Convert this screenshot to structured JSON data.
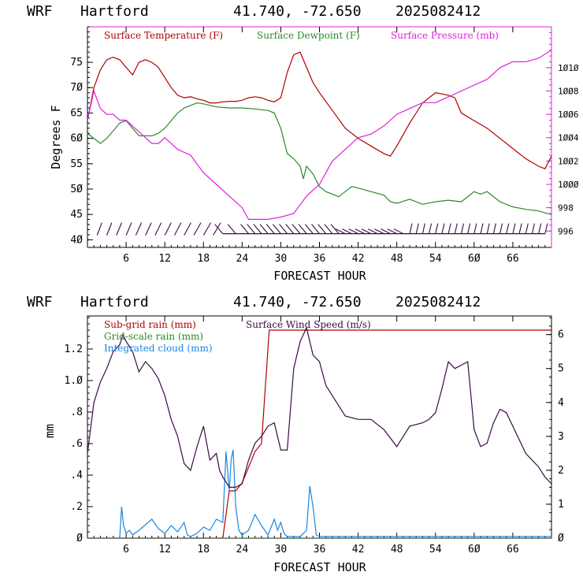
{
  "chart_data": [
    {
      "type": "line",
      "header": {
        "model": "WRF",
        "site": "Hartford",
        "coords": "41.740, -72.650",
        "run": "2025082412"
      },
      "xlabel": "FORECAST HOUR",
      "ylabel": "Degrees F",
      "xlim": [
        0,
        72
      ],
      "xticks": [
        6,
        12,
        18,
        24,
        30,
        36,
        42,
        48,
        54,
        60,
        66
      ],
      "xtick_labels": [
        "6",
        "12",
        "18",
        "24",
        "30",
        "36",
        "42",
        "48",
        "54",
        "6Ø",
        "66"
      ],
      "ylim": [
        38.5,
        82
      ],
      "yticks": [
        40,
        45,
        50,
        55,
        60,
        65,
        70,
        75
      ],
      "ytick_labels": [
        "4Ø",
        "45",
        "5Ø",
        "55",
        "6Ø",
        "65",
        "7Ø",
        "75"
      ],
      "y2lim": [
        994.6,
        1013.5
      ],
      "y2ticks": [
        996,
        998,
        1000,
        1002,
        1004,
        1006,
        1008,
        1010
      ],
      "y2tick_labels": [
        "996",
        "998",
        "1ØØØ",
        "1ØØ2",
        "1ØØ4",
        "1ØØ6",
        "1ØØ8",
        "1Ø1Ø"
      ],
      "legend_placement": "top",
      "series": [
        {
          "name": "Surface Temperature (F)",
          "color": "#b00000",
          "axis": "left",
          "x": [
            0,
            1,
            2,
            3,
            4,
            5,
            6,
            7,
            8,
            9,
            10,
            11,
            12,
            13,
            14,
            15,
            16,
            17,
            18,
            19,
            20,
            21,
            22,
            23,
            24,
            25,
            26,
            27,
            28,
            29,
            30,
            31,
            32,
            33,
            34,
            35,
            36,
            38,
            40,
            42,
            44,
            46,
            47,
            48,
            50,
            52,
            54,
            56,
            57,
            58,
            60,
            62,
            64,
            66,
            68,
            70,
            71,
            72
          ],
          "values": [
            63.5,
            70,
            73.5,
            75.5,
            76,
            75.5,
            74,
            72.5,
            75,
            75.5,
            75,
            74,
            72,
            70,
            68.5,
            68,
            68.2,
            67.8,
            67.5,
            67,
            67,
            67.2,
            67.3,
            67.3,
            67.5,
            68,
            68.2,
            68,
            67.5,
            67.2,
            68,
            73,
            76.5,
            77,
            74,
            71,
            69,
            65.5,
            62,
            60,
            58.5,
            57,
            56.5,
            58.5,
            63,
            67,
            69,
            68.5,
            68,
            65,
            63.5,
            62,
            60,
            58,
            56,
            54.5,
            54,
            56.5
          ]
        },
        {
          "name": "Surface Dewpoint (F)",
          "color": "#2a8a2a",
          "axis": "left",
          "x": [
            0,
            1,
            2,
            3,
            4,
            5,
            6,
            7,
            8,
            9,
            10,
            11,
            12,
            13,
            14,
            15,
            16,
            17,
            18,
            20,
            22,
            24,
            26,
            28,
            29,
            30,
            31,
            32,
            33,
            33.5,
            34,
            35,
            36,
            37,
            38,
            39,
            40,
            41,
            42,
            44,
            46,
            47,
            48,
            50,
            51,
            52,
            54,
            56,
            58,
            59,
            60,
            61,
            62,
            63,
            64,
            66,
            68,
            70,
            71,
            72
          ],
          "values": [
            61,
            60,
            59,
            60,
            61.5,
            63,
            63.5,
            62,
            60.5,
            60.5,
            60.5,
            61,
            62,
            63.5,
            65,
            66,
            66.5,
            67,
            66.8,
            66.2,
            66,
            66,
            65.8,
            65.5,
            65,
            62,
            57,
            56,
            54.5,
            52,
            54.5,
            53,
            50.5,
            49.5,
            49,
            48.5,
            49.5,
            50.5,
            50.2,
            49.5,
            48.8,
            47.5,
            47.2,
            48,
            47.5,
            47,
            47.5,
            47.8,
            47.5,
            48.5,
            49.5,
            49,
            49.5,
            48.5,
            47.5,
            46.5,
            46,
            45.7,
            45.3,
            45
          ]
        },
        {
          "name": "Surface Pressure (mb)",
          "color": "#e020e0",
          "axis": "right",
          "x": [
            0,
            1,
            2,
            3,
            4,
            5,
            6,
            7,
            8,
            9,
            10,
            11,
            12,
            14,
            16,
            18,
            20,
            22,
            24,
            25,
            26,
            27,
            28,
            30,
            32,
            34,
            36,
            38,
            40,
            42,
            44,
            46,
            48,
            50,
            52,
            54,
            56,
            58,
            60,
            62,
            64,
            66,
            68,
            70,
            72
          ],
          "values": [
            1005.5,
            1008,
            1006.5,
            1006,
            1006,
            1005.5,
            1005.5,
            1005,
            1004.5,
            1004,
            1003.5,
            1003.5,
            1004,
            1003,
            1002.5,
            1001,
            1000,
            999,
            998,
            997,
            997,
            997,
            997,
            997.2,
            997.5,
            999,
            1000,
            1002,
            1003,
            1004,
            1004.3,
            1005,
            1006,
            1006.5,
            1007,
            1007,
            1007.5,
            1008,
            1008.5,
            1009,
            1010,
            1010.5,
            1010.5,
            1010.8,
            1011.5
          ]
        }
      ],
      "wind_barbs": {
        "color": "#3a0a45",
        "label": "",
        "x": [
          1.5,
          3,
          4.5,
          6,
          7.5,
          9,
          10.5,
          12,
          13.5,
          15,
          16.5,
          18,
          19.5,
          21,
          23,
          25,
          26,
          27,
          28,
          29,
          30,
          31,
          32,
          33,
          34,
          35,
          36,
          37,
          38,
          39,
          40,
          41,
          42,
          43,
          44,
          45,
          46,
          47,
          48,
          49,
          50,
          51,
          52,
          53,
          54,
          55,
          56,
          57,
          58,
          59,
          60,
          61,
          62,
          63,
          64,
          65,
          66,
          67,
          68,
          69,
          70,
          71
        ]
      }
    },
    {
      "type": "line",
      "header": {
        "model": "WRF",
        "site": "Hartford",
        "coords": "41.740, -72.650",
        "run": "2025082412"
      },
      "xlabel": "FORECAST HOUR",
      "ylabel": "mm",
      "xlim": [
        0,
        72
      ],
      "xticks": [
        6,
        12,
        18,
        24,
        30,
        36,
        42,
        48,
        54,
        60,
        66
      ],
      "xtick_labels": [
        "6",
        "12",
        "18",
        "24",
        "30",
        "36",
        "42",
        "48",
        "54",
        "6Ø",
        "66"
      ],
      "ylim": [
        0,
        1.41
      ],
      "yticks": [
        0,
        0.2,
        0.4,
        0.6,
        0.8,
        1.0,
        1.2
      ],
      "ytick_labels": [
        "Ø",
        ".2",
        ".4",
        ".6",
        ".8",
        "1.Ø",
        "1.2"
      ],
      "y2lim": [
        0,
        6.55
      ],
      "y2ticks": [
        0,
        1,
        2,
        3,
        4,
        5,
        6
      ],
      "y2tick_labels": [
        "Ø",
        "1",
        "2",
        "3",
        "4",
        "5",
        "6"
      ],
      "legend_placement": "top-left",
      "series": [
        {
          "name": "Sub-grid rain (mm)",
          "color": "#b00000",
          "axis": "left",
          "x": [
            0,
            21,
            22,
            23,
            24,
            25,
            26,
            27,
            28,
            28.2,
            29,
            72
          ],
          "values": [
            0,
            0,
            0.3,
            0.3,
            0.35,
            0.45,
            0.55,
            0.6,
            1.2,
            1.32,
            1.32,
            1.32
          ]
        },
        {
          "name": "Grid-scale rain (mm)",
          "color": "#2a8a2a",
          "axis": "left",
          "x": [
            0,
            72
          ],
          "values": [
            0,
            0
          ]
        },
        {
          "name": "Integrated cloud (mm)",
          "color": "#1a86e0",
          "axis": "left",
          "x": [
            0,
            5,
            5.3,
            5.6,
            6,
            6.5,
            7,
            8,
            10,
            11,
            12,
            13,
            14,
            15,
            15.5,
            16,
            17,
            18,
            19,
            20,
            21,
            21.5,
            22,
            22.3,
            22.6,
            23,
            23.5,
            24,
            25,
            26,
            27,
            28,
            29,
            29.5,
            30,
            30.5,
            31,
            33,
            34,
            34.5,
            35,
            35.5,
            36,
            72
          ],
          "values": [
            0,
            0,
            0.2,
            0.08,
            0.03,
            0.05,
            0.02,
            0.05,
            0.12,
            0.06,
            0.03,
            0.08,
            0.04,
            0.1,
            0.02,
            0.01,
            0.03,
            0.07,
            0.05,
            0.12,
            0.1,
            0.55,
            0.3,
            0.5,
            0.56,
            0.2,
            0.05,
            0.02,
            0.05,
            0.15,
            0.08,
            0.02,
            0.12,
            0.05,
            0.1,
            0.03,
            0.01,
            0.01,
            0.05,
            0.33,
            0.2,
            0.02,
            0.01,
            0.01
          ]
        },
        {
          "name": "Surface Wind Speed (m/s)",
          "color": "#3a0a45",
          "axis": "right",
          "x": [
            0,
            1,
            2,
            3,
            4,
            5,
            5.5,
            6,
            7,
            8,
            9,
            10,
            11,
            12,
            13,
            14,
            15,
            16,
            17,
            18,
            19,
            20,
            20.5,
            21,
            22,
            23,
            24,
            25,
            26,
            27,
            28,
            29,
            30,
            31,
            32,
            33,
            34,
            35,
            36,
            37,
            38,
            39,
            40,
            42,
            44,
            46,
            48,
            50,
            52,
            53,
            54,
            55,
            56,
            57,
            58,
            59,
            60,
            61,
            62,
            63,
            64,
            65,
            66,
            68,
            70,
            71,
            72
          ],
          "values": [
            2.5,
            4,
            4.6,
            5,
            5.5,
            5.7,
            6,
            5.8,
            5.5,
            4.9,
            5.2,
            5.0,
            4.7,
            4.2,
            3.5,
            3.0,
            2.2,
            2.0,
            2.7,
            3.3,
            2.3,
            2.5,
            2.0,
            1.8,
            1.5,
            1.5,
            1.6,
            2.3,
            2.8,
            3.0,
            3.3,
            3.4,
            2.6,
            2.6,
            5.0,
            5.8,
            6.2,
            5.4,
            5.2,
            4.5,
            4.2,
            3.9,
            3.6,
            3.5,
            3.5,
            3.2,
            2.7,
            3.3,
            3.4,
            3.5,
            3.7,
            4.4,
            5.2,
            5.0,
            5.1,
            5.2,
            3.2,
            2.7,
            2.8,
            3.4,
            3.8,
            3.7,
            3.3,
            2.5,
            2.1,
            1.8,
            1.6
          ]
        }
      ]
    }
  ]
}
